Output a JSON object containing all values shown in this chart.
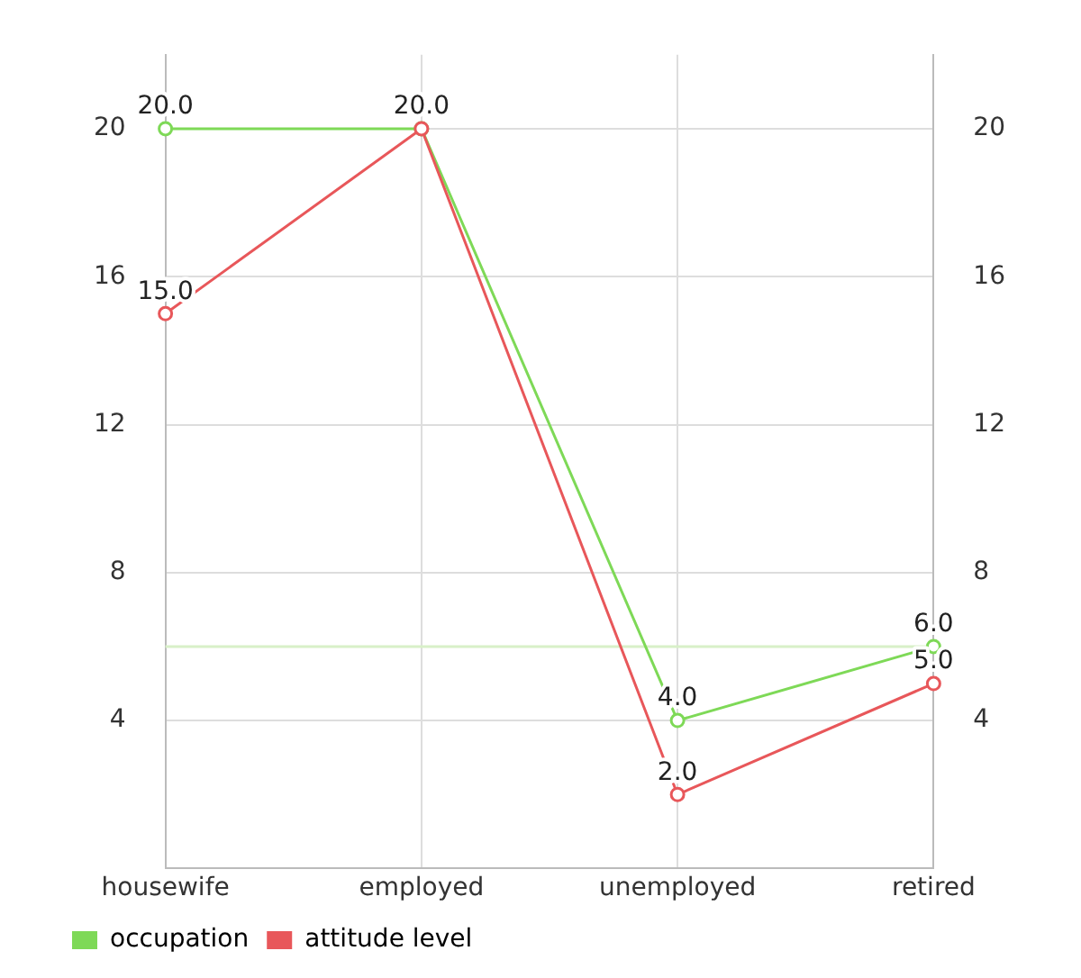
{
  "chart_data": {
    "type": "line",
    "categories": [
      "housewife",
      "employed",
      "unemployed",
      "retired"
    ],
    "series": [
      {
        "name": "occupation",
        "color": "#7ed957",
        "values": [
          20,
          20,
          4,
          6
        ],
        "value_labels": [
          "20.0",
          "20.0",
          "4.0",
          "6.0"
        ]
      },
      {
        "name": "attitude level",
        "color": "#e8575a",
        "values": [
          15,
          20,
          2,
          5
        ],
        "value_labels": [
          "15.0",
          null,
          "2.0",
          "5.0"
        ]
      }
    ],
    "ylim": [
      0,
      22
    ],
    "yticks": [
      4,
      8,
      12,
      16,
      20
    ],
    "y2lim": [
      0,
      22
    ],
    "y2ticks": [
      4,
      8,
      12,
      16,
      20
    ],
    "ref_lines": [
      {
        "axis": "y",
        "value": 6,
        "color": "#d8f0c8"
      }
    ],
    "grid": true,
    "legend": "bottom left",
    "marker": "circle",
    "line_style": "solid"
  }
}
